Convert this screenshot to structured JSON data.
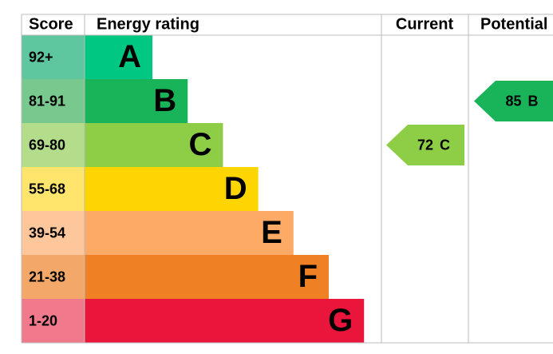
{
  "header": {
    "score": "Score",
    "energy_rating": "Energy rating",
    "current": "Current",
    "potential": "Potential"
  },
  "bands": [
    {
      "score": "92+",
      "letter": "A",
      "color": "#00c781",
      "score_color": "#5fc7a0"
    },
    {
      "score": "81-91",
      "letter": "B",
      "color": "#19b459",
      "score_color": "#79c98e"
    },
    {
      "score": "69-80",
      "letter": "C",
      "color": "#8dce46",
      "score_color": "#b3dd8a"
    },
    {
      "score": "55-68",
      "letter": "D",
      "color": "#ffd500",
      "score_color": "#ffe56b"
    },
    {
      "score": "39-54",
      "letter": "E",
      "color": "#fcaa65",
      "score_color": "#fdc69b"
    },
    {
      "score": "21-38",
      "letter": "F",
      "color": "#ef8023",
      "score_color": "#f3a768"
    },
    {
      "score": "1-20",
      "letter": "G",
      "color": "#e9153b",
      "score_color": "#f07a8c"
    }
  ],
  "current": {
    "value": 72,
    "letter": "C"
  },
  "potential": {
    "value": 85,
    "letter": "B"
  }
}
